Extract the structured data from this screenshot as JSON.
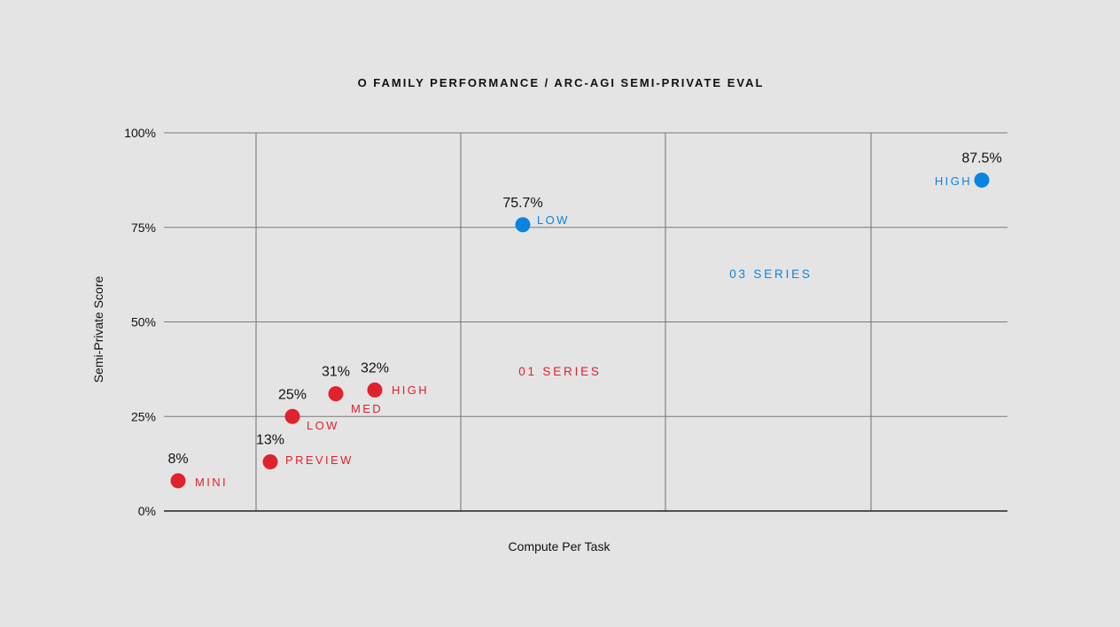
{
  "chart_data": {
    "type": "scatter",
    "title": "O FAMILY PERFORMANCE / ARC-AGI SEMI-PRIVATE EVAL",
    "xlabel": "Compute Per Task",
    "ylabel": "Semi-Private Score",
    "ylim": [
      0,
      100
    ],
    "yticks": [
      "0%",
      "25%",
      "50%",
      "75%",
      "100%"
    ],
    "grid": true,
    "colors": {
      "o1": "#e0222f",
      "o3": "#0a84e0"
    },
    "series": [
      {
        "name": "01 SERIES",
        "color": "#e0222f",
        "points": [
          {
            "label": "MINI",
            "value": 8,
            "value_label": "8%"
          },
          {
            "label": "PREVIEW",
            "value": 13,
            "value_label": "13%"
          },
          {
            "label": "LOW",
            "value": 25,
            "value_label": "25%"
          },
          {
            "label": "MED",
            "value": 31,
            "value_label": "31%"
          },
          {
            "label": "HIGH",
            "value": 32,
            "value_label": "32%"
          }
        ]
      },
      {
        "name": "03 SERIES",
        "color": "#0a84e0",
        "points": [
          {
            "label": "LOW",
            "value": 75.7,
            "value_label": "75.7%"
          },
          {
            "label": "HIGH",
            "value": 87.5,
            "value_label": "87.5%"
          }
        ]
      }
    ]
  }
}
